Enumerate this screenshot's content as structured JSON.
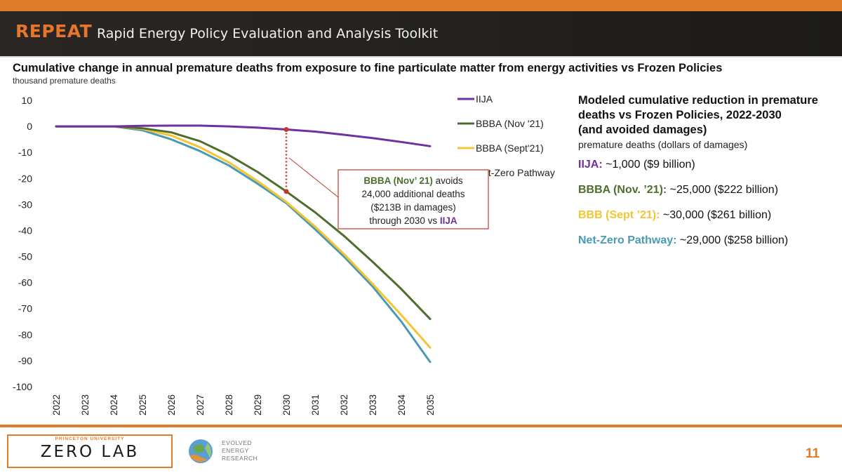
{
  "header": {
    "brand": "REPEAT",
    "subtitle": "Rapid Energy Policy Evaluation and Analysis Toolkit"
  },
  "colors": {
    "accent": "#e07b2a",
    "iija": "#7030a0",
    "bbba_nov": "#4e6e2e",
    "bbba_sept": "#f5c431",
    "net_zero": "#4a9ab4",
    "callout_border": "#c0392b"
  },
  "chart_data": {
    "type": "line",
    "title": "Cumulative change in annual premature deaths from exposure to fine particulate matter from energy activities vs Frozen Policies",
    "ylabel": "thousand premature deaths",
    "xlabel": "",
    "categories": [
      "2022",
      "2023",
      "2024",
      "2025",
      "2026",
      "2027",
      "2028",
      "2029",
      "2030",
      "2031",
      "2032",
      "2033",
      "2034",
      "2035"
    ],
    "ylim": [
      -100,
      10
    ],
    "yticks": [
      10,
      0,
      -10,
      -20,
      -30,
      -40,
      -50,
      -60,
      -70,
      -80,
      -90,
      -100
    ],
    "grid": false,
    "legend": "top-right",
    "series": [
      {
        "name": "IIJA",
        "color": "#7030a0",
        "values": [
          0,
          0,
          0,
          0.2,
          0.3,
          0.3,
          0,
          -0.5,
          -1.2,
          -2,
          -3.2,
          -4.5,
          -6,
          -7.6
        ]
      },
      {
        "name": "BBBA (Nov '21)",
        "color": "#4e6e2e",
        "values": [
          0,
          0,
          0,
          -0.7,
          -2.3,
          -5.7,
          -11,
          -17.5,
          -25,
          -33,
          -42,
          -52,
          -62.5,
          -74
        ]
      },
      {
        "name": "BBBA (Sept'21)",
        "color": "#f5c431",
        "values": [
          0,
          0,
          0,
          -1,
          -3.5,
          -8,
          -13.8,
          -21,
          -29,
          -38.5,
          -49,
          -60.5,
          -72.5,
          -85
        ]
      },
      {
        "name": "Net-Zero Pathway",
        "color": "#4a9ab4",
        "values": [
          0,
          0,
          0,
          -1.5,
          -5,
          -9.5,
          -15,
          -22,
          -29.5,
          -39.5,
          -50,
          -61.5,
          -75,
          -90.5
        ]
      }
    ],
    "annotation": {
      "x": "2030",
      "from": -1.2,
      "to": -25,
      "lines": [
        [
          {
            "t": "BBBA (Nov’ 21)",
            "c": "#4e6e2e",
            "b": true
          },
          {
            "t": " avoids"
          }
        ],
        [
          {
            "t": "24,000 additional deaths"
          }
        ],
        [
          {
            "t": "($213B in damages)"
          }
        ],
        [
          {
            "t": "through 2030 vs "
          },
          {
            "t": "IIJA",
            "c": "#7030a0",
            "b": true
          }
        ]
      ]
    }
  },
  "panel": {
    "title": "Modeled cumulative reduction in premature\ndeaths vs Frozen Policies, 2022-2030\n(and avoided damages)",
    "subtitle": "premature deaths (dollars of damages)",
    "items": [
      {
        "label": "IIJA:",
        "value": " ~1,000 ($9 billion)",
        "color": "#7030a0"
      },
      {
        "label": "BBBA (Nov. ’21):",
        "value": " ~25,000 ($222 billion)",
        "color": "#4e6e2e"
      },
      {
        "label": "BBB (Sept ’21):",
        "value": " ~30,000 ($261 billion)",
        "color": "#f5c431"
      },
      {
        "label": "Net-Zero Pathway:",
        "value": " ~29,000 ($258 billion)",
        "color": "#4a9ab4"
      }
    ]
  },
  "footer": {
    "university": "PRINCETON UNIVERSITY",
    "lab": "ZERO LAB",
    "partner": "EVOLVED\nENERGY\nRESEARCH",
    "page": "11"
  }
}
